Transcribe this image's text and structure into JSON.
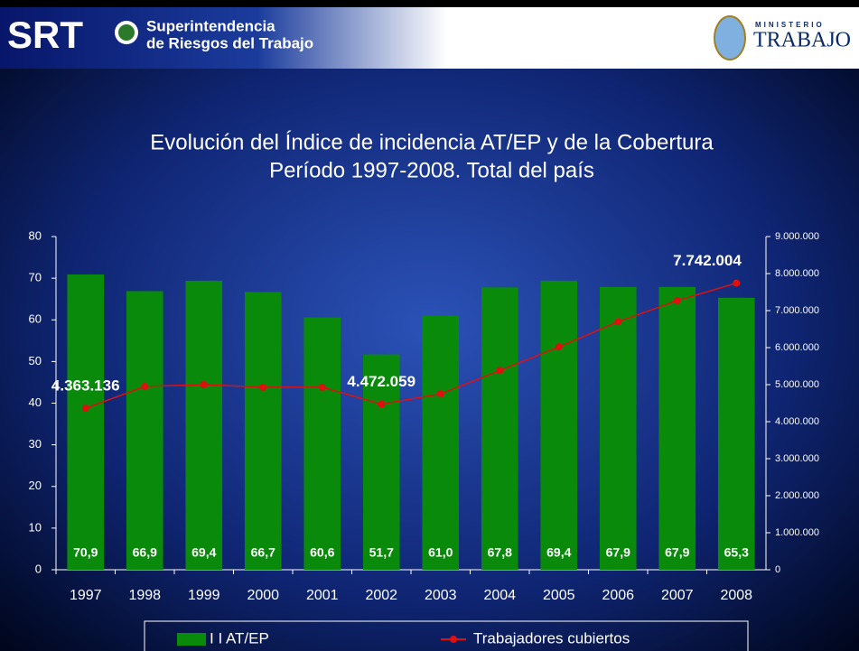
{
  "header": {
    "logo": "SRT",
    "org_line1": "Superintendencia",
    "org_line2": "de Riesgos del Trabajo",
    "ministry_small": "MINISTERIO",
    "ministry": "TRABAJO"
  },
  "chart_data": {
    "type": "bar",
    "title": "Evolución del Índice de incidencia  AT/EP y de la Cobertura",
    "subtitle": "Período 1997-2008. Total del país",
    "categories": [
      "1997",
      "1998",
      "1999",
      "2000",
      "2001",
      "2002",
      "2003",
      "2004",
      "2005",
      "2006",
      "2007",
      "2008"
    ],
    "series": [
      {
        "name": "I I AT/EP",
        "type": "bar",
        "color": "#0a8a0a",
        "values": [
          70.9,
          66.9,
          69.4,
          66.7,
          60.6,
          51.7,
          61.0,
          67.8,
          69.4,
          67.9,
          67.9,
          65.3
        ],
        "value_labels": [
          "70,9",
          "66,9",
          "69,4",
          "66,7",
          "60,6",
          "51,7",
          "61,0",
          "67,8",
          "69,4",
          "67,9",
          "67,9",
          "65,3"
        ]
      },
      {
        "name": "Trabajadores cubiertos",
        "type": "line",
        "axis": "y2",
        "color": "#e01010",
        "values": [
          4363136,
          4950000,
          5000000,
          4930000,
          4930000,
          4472059,
          4750000,
          5380000,
          6020000,
          6700000,
          7270000,
          7742004
        ],
        "value_labels": [
          "4.363.136",
          null,
          null,
          null,
          null,
          "4.472.059",
          null,
          null,
          null,
          null,
          null,
          "7.742.004"
        ]
      }
    ],
    "ylim": [
      0,
      80
    ],
    "yticks": [
      0,
      10,
      20,
      30,
      40,
      50,
      60,
      70,
      80
    ],
    "y2lim": [
      0,
      9000000
    ],
    "y2ticks": [
      0,
      {
        "value": 1000000,
        "label": "1.000.000"
      },
      {
        "value": 2000000,
        "label": "2.000.000"
      },
      {
        "value": 3000000,
        "label": "3.000.000"
      },
      {
        "value": 4000000,
        "label": "4.000.000"
      },
      {
        "value": 5000000,
        "label": "5.000.000"
      },
      {
        "value": 6000000,
        "label": "6.000.000"
      },
      {
        "value": 7000000,
        "label": "7.000.000"
      },
      {
        "value": 8000000,
        "label": "8.000.000"
      },
      {
        "value": 9000000,
        "label": "9.000.000"
      }
    ],
    "legend": "bottom",
    "grid": false
  }
}
